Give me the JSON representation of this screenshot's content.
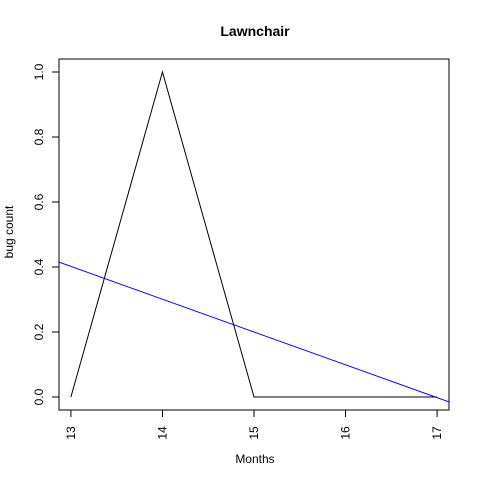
{
  "chart_data": {
    "type": "line",
    "title": "Lawnchair",
    "xlabel": "Months",
    "ylabel": "bug count",
    "xlim": [
      12.87,
      17.13
    ],
    "ylim": [
      -0.04,
      1.04
    ],
    "x_ticks": [
      13,
      14,
      15,
      16,
      17
    ],
    "y_ticks": [
      0.0,
      0.2,
      0.4,
      0.6,
      0.8,
      1.0
    ],
    "y_tick_labels": [
      "0.0",
      "0.2",
      "0.4",
      "0.6",
      "0.8",
      "1.0"
    ],
    "grid": false,
    "series": [
      {
        "color": "#000000",
        "x": [
          13,
          14,
          15,
          17
        ],
        "y": [
          0,
          1,
          0,
          0
        ]
      },
      {
        "color": "#0000ff",
        "x": [
          12.87,
          17.13
        ],
        "y": [
          0.415,
          -0.015
        ]
      }
    ]
  }
}
